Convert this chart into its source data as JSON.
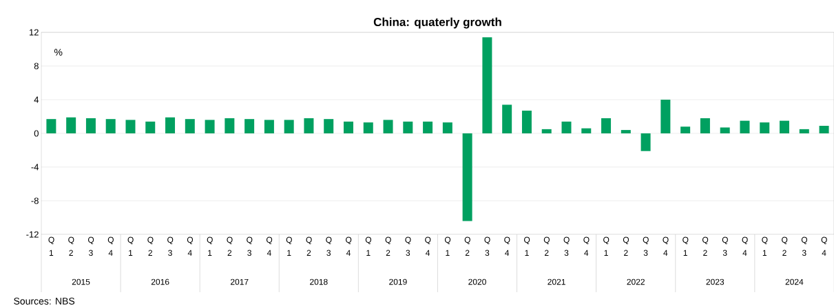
{
  "chart_data": {
    "type": "bar",
    "title": "China: quaterly growth",
    "ylabel": "%",
    "categories": [
      "Q 1",
      "Q 2",
      "Q 3",
      "Q 4",
      "Q 1",
      "Q 2",
      "Q 3",
      "Q 4",
      "Q 1",
      "Q 2",
      "Q 3",
      "Q 4",
      "Q 1",
      "Q 2",
      "Q 3",
      "Q 4",
      "Q 1",
      "Q 2",
      "Q 3",
      "Q 4",
      "Q 1",
      "Q 2",
      "Q 3",
      "Q 4",
      "Q 1",
      "Q 2",
      "Q 3",
      "Q 4",
      "Q 1",
      "Q 2",
      "Q 3",
      "Q 4",
      "Q 1",
      "Q 2",
      "Q 3",
      "Q 4",
      "Q 1",
      "Q 2",
      "Q 3",
      "Q 4"
    ],
    "values": [
      1.7,
      1.9,
      1.8,
      1.7,
      1.6,
      1.4,
      1.9,
      1.7,
      1.6,
      1.8,
      1.7,
      1.6,
      1.6,
      1.8,
      1.7,
      1.4,
      1.3,
      1.6,
      1.4,
      1.4,
      1.3,
      -10.4,
      11.4,
      3.4,
      2.7,
      0.5,
      1.4,
      0.6,
      1.8,
      0.4,
      -2.1,
      4.0,
      0.8,
      1.8,
      0.7,
      1.5,
      1.3,
      1.5,
      0.5,
      0.9
    ],
    "color": "#00a060",
    "ylim": [
      -12,
      12
    ],
    "yticks": [
      -12,
      -8,
      -4,
      0,
      4,
      8,
      12
    ],
    "grid": "y",
    "annotations": [
      "2015",
      "2016",
      "2017",
      "2018",
      "2019",
      "2020",
      "2021",
      "2022",
      "2023",
      "2024",
      "Sources: NBS"
    ]
  }
}
